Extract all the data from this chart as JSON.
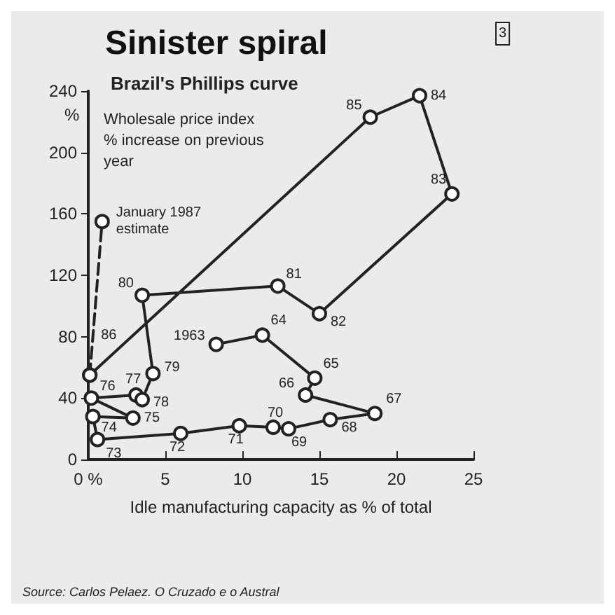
{
  "chart_data": {
    "type": "line",
    "title": "Sinister spiral",
    "subtitle": "Brazil's Phillips curve",
    "xlabel": "Idle manufacturing capacity as % of total",
    "ylabel": "%",
    "xlim": [
      0,
      25
    ],
    "ylim": [
      0,
      240
    ],
    "xticks": [
      {
        "value": 0,
        "label": "0 %"
      },
      5,
      10,
      15,
      20,
      25
    ],
    "yticks": [
      0,
      40,
      80,
      120,
      160,
      200,
      240
    ],
    "marker": "circle",
    "series": [
      {
        "color": "#222222",
        "line_style": "solid",
        "x": [
          8.3,
          11.3,
          14.7,
          14.1,
          18.6,
          15.7,
          13.0,
          12.0,
          9.8,
          6.0,
          0.6,
          0.3,
          2.9,
          0.2,
          3.1,
          3.5,
          4.2,
          3.5,
          12.3,
          15.0,
          23.6,
          21.5,
          18.3,
          0.1
        ],
        "values": [
          75,
          81,
          53,
          42,
          30,
          26,
          20,
          21,
          22,
          17,
          13,
          28,
          27,
          40,
          42,
          39,
          56,
          107,
          113,
          95,
          173,
          237,
          223,
          55
        ]
      },
      {
        "color": "#222222",
        "line_style": "dashed",
        "x": [
          0.1,
          0.9
        ],
        "values": [
          55,
          155
        ]
      }
    ],
    "annotations": [
      {
        "text": "1963",
        "x": 8.3,
        "y": 75
      },
      {
        "text": "64",
        "x": 11.3,
        "y": 81
      },
      {
        "text": "65",
        "x": 14.7,
        "y": 53
      },
      {
        "text": "66",
        "x": 14.1,
        "y": 42
      },
      {
        "text": "67",
        "x": 18.6,
        "y": 30
      },
      {
        "text": "68",
        "x": 15.7,
        "y": 26
      },
      {
        "text": "69",
        "x": 13.0,
        "y": 20
      },
      {
        "text": "70",
        "x": 12.0,
        "y": 21
      },
      {
        "text": "71",
        "x": 9.8,
        "y": 22
      },
      {
        "text": "72",
        "x": 6.0,
        "y": 17
      },
      {
        "text": "73",
        "x": 0.6,
        "y": 13
      },
      {
        "text": "74",
        "x": 0.3,
        "y": 28
      },
      {
        "text": "75",
        "x": 2.9,
        "y": 27
      },
      {
        "text": "76",
        "x": 0.2,
        "y": 40
      },
      {
        "text": "77",
        "x": 3.1,
        "y": 42
      },
      {
        "text": "78",
        "x": 3.5,
        "y": 39
      },
      {
        "text": "79",
        "x": 4.2,
        "y": 56
      },
      {
        "text": "80",
        "x": 3.5,
        "y": 107
      },
      {
        "text": "81",
        "x": 12.3,
        "y": 113
      },
      {
        "text": "82",
        "x": 15.0,
        "y": 95
      },
      {
        "text": "83",
        "x": 23.6,
        "y": 173
      },
      {
        "text": "84",
        "x": 21.5,
        "y": 237
      },
      {
        "text": "85",
        "x": 18.3,
        "y": 223
      },
      {
        "text": "86",
        "x": 0.1,
        "y": 55
      },
      {
        "text": "January 1987\nestimate",
        "x": 0.9,
        "y": 155
      },
      "Wholesale price index\n% increase on previous\nyear",
      "Source: Carlos Pelaez. O Cruzado e o Austral",
      "3"
    ]
  }
}
